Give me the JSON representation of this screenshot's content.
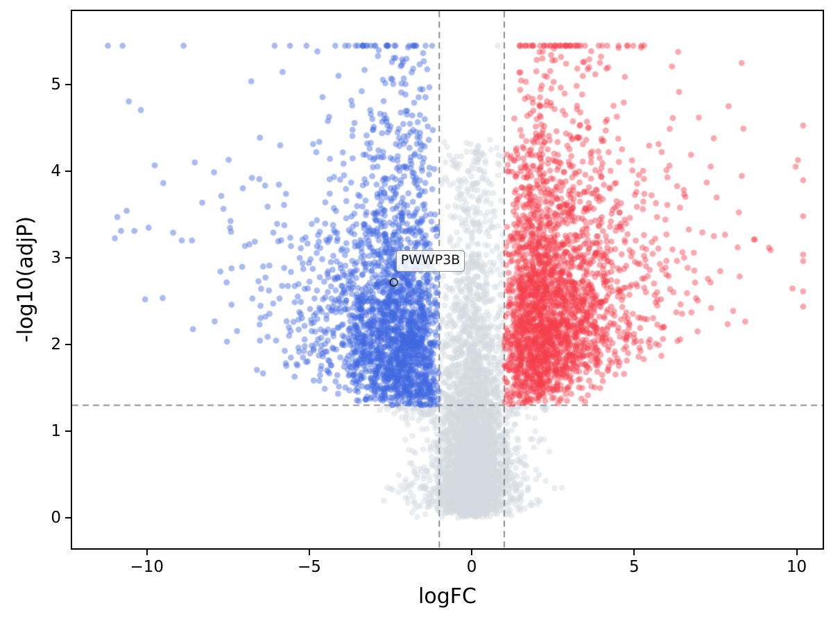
{
  "figure": {
    "background_color": "#ffffff"
  },
  "chart_data": {
    "type": "scatter",
    "subtype": "volcano-plot",
    "title": "",
    "xlabel": "logFC",
    "ylabel": "-log10(adjP)",
    "xlim": [
      -12.3,
      10.8
    ],
    "ylim": [
      -0.35,
      5.85
    ],
    "xticks": [
      {
        "value": -10,
        "label": "−10"
      },
      {
        "value": -5,
        "label": "−5"
      },
      {
        "value": 0,
        "label": "0"
      },
      {
        "value": 5,
        "label": "5"
      },
      {
        "value": 10,
        "label": "10"
      }
    ],
    "yticks": [
      {
        "value": 0,
        "label": "0"
      },
      {
        "value": 1,
        "label": "1"
      },
      {
        "value": 2,
        "label": "2"
      },
      {
        "value": 3,
        "label": "3"
      },
      {
        "value": 4,
        "label": "4"
      },
      {
        "value": 5,
        "label": "5"
      }
    ],
    "grid": false,
    "legend": "none",
    "threshold_lines": {
      "vertical_logfc": [
        -1,
        1
      ],
      "horizontal_neglog10p": 1.301,
      "style": "dashed",
      "color": "#7f7f7f"
    },
    "series": [
      {
        "name": "downregulated",
        "color": "#4169e1",
        "region": "logFC <= -1 and -log10(adjP) >= 1.301"
      },
      {
        "name": "not_significant",
        "color": "#d3dae1",
        "region": "|logFC| < 1 or -log10(adjP) < 1.301"
      },
      {
        "name": "upregulated",
        "color": "#f4414d",
        "region": "logFC >= 1 and -log10(adjP) >= 1.301"
      }
    ],
    "point_style": {
      "radius": 4.4,
      "alpha": 0.45
    },
    "annotation": {
      "label": "PWWP3B",
      "x": -2.4,
      "y": 2.72,
      "marker": "open-circle"
    },
    "extra_points": [
      {
        "x": -11.2,
        "y": 5.45,
        "series": "downregulated"
      },
      {
        "x": 0.8,
        "y": 5.45,
        "series": "not_significant"
      }
    ],
    "generation": {
      "seed": 12,
      "n_points": 9000,
      "y_cap": 5.45,
      "fractions": {
        "null_cloud": 0.28,
        "central_column": 0.2
      },
      "wing_positive_prob": 0.52
    }
  }
}
